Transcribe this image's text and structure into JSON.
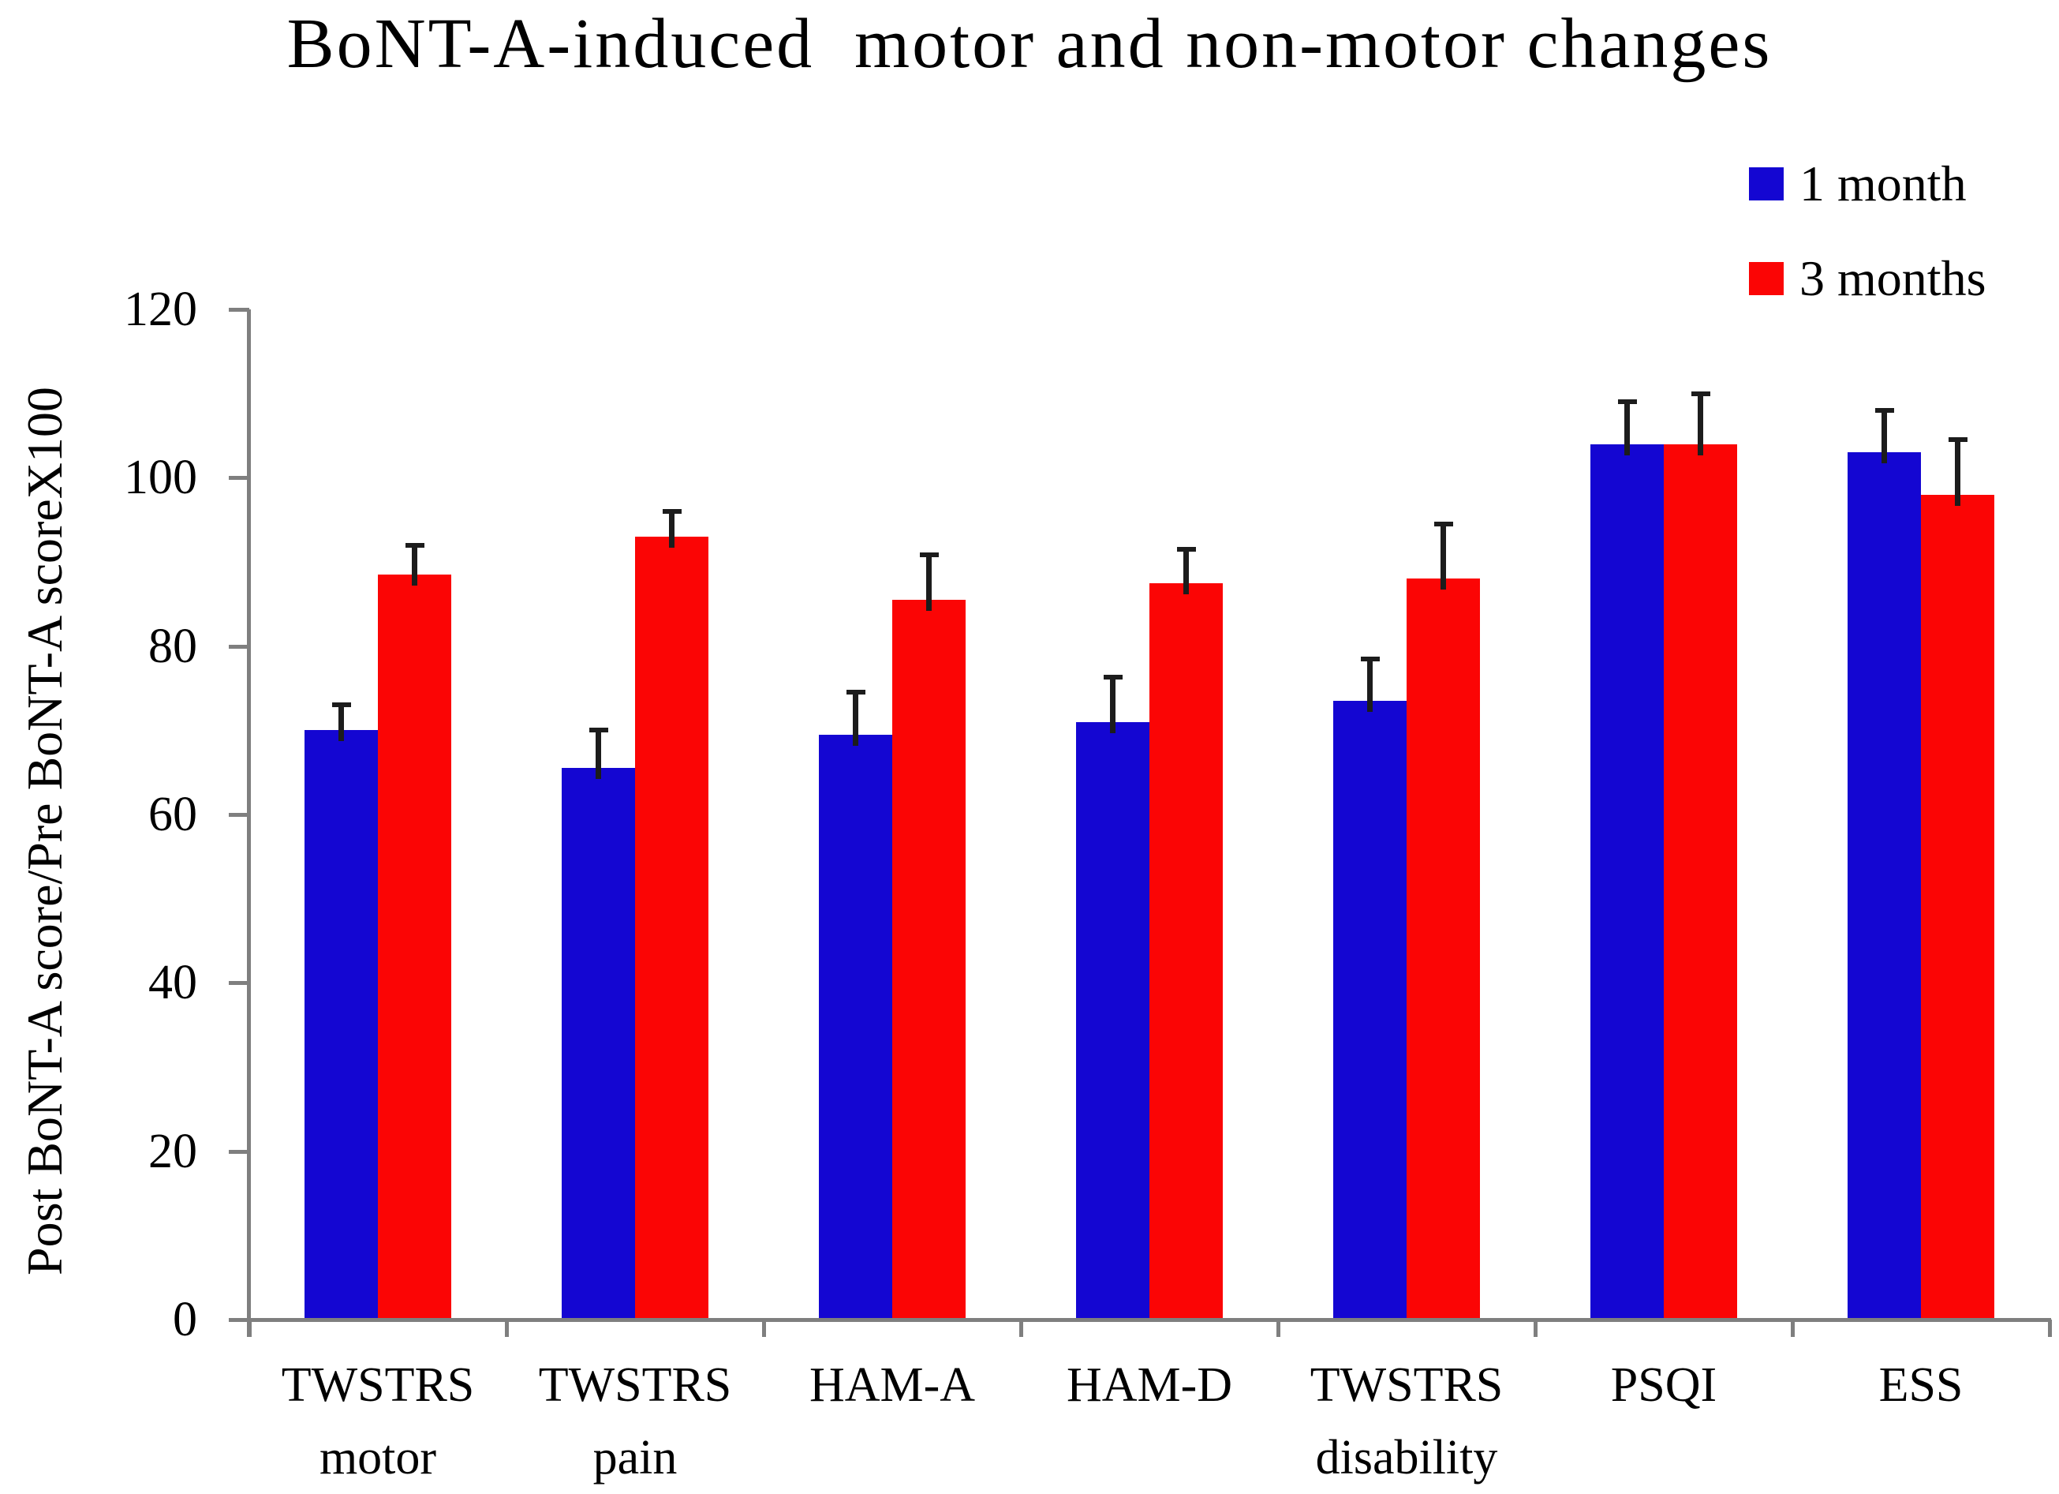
{
  "title": "BoNT-A-induced  motor and non-motor changes",
  "colors": {
    "series1_blue": "#1406D2",
    "series2_red": "#FB0505",
    "axis_gray": "#7f7f7f",
    "error_bar_black": "#1c1c1c"
  },
  "chart_data": {
    "type": "bar",
    "title": "BoNT-A-induced  motor and non-motor changes",
    "xlabel": "",
    "ylabel": "Post BoNT-A score/Pre BoNT-A scoreX100",
    "ylim": [
      0,
      120
    ],
    "yticks": [
      0,
      20,
      40,
      60,
      80,
      100,
      120
    ],
    "grid": false,
    "legend_position": "top-right",
    "error_bars": "upper only",
    "categories": [
      [
        "TWSTRS",
        "motor"
      ],
      [
        "TWSTRS",
        "pain"
      ],
      [
        "HAM-A",
        ""
      ],
      [
        "HAM-D",
        ""
      ],
      [
        "TWSTRS",
        "disability"
      ],
      [
        "PSQI",
        ""
      ],
      [
        "ESS",
        ""
      ]
    ],
    "series": [
      {
        "name": "1 month",
        "color": "#1406D2",
        "values": [
          70,
          65.5,
          69.5,
          71,
          73.5,
          104,
          103
        ],
        "error_plus": [
          3,
          4.5,
          5,
          5.3,
          5,
          5,
          5
        ]
      },
      {
        "name": "3 months",
        "color": "#FB0505",
        "values": [
          88.5,
          93,
          85.5,
          87.5,
          88,
          104,
          98
        ],
        "error_plus": [
          3.5,
          3,
          5.3,
          4,
          6.5,
          6,
          6.5
        ]
      }
    ]
  }
}
